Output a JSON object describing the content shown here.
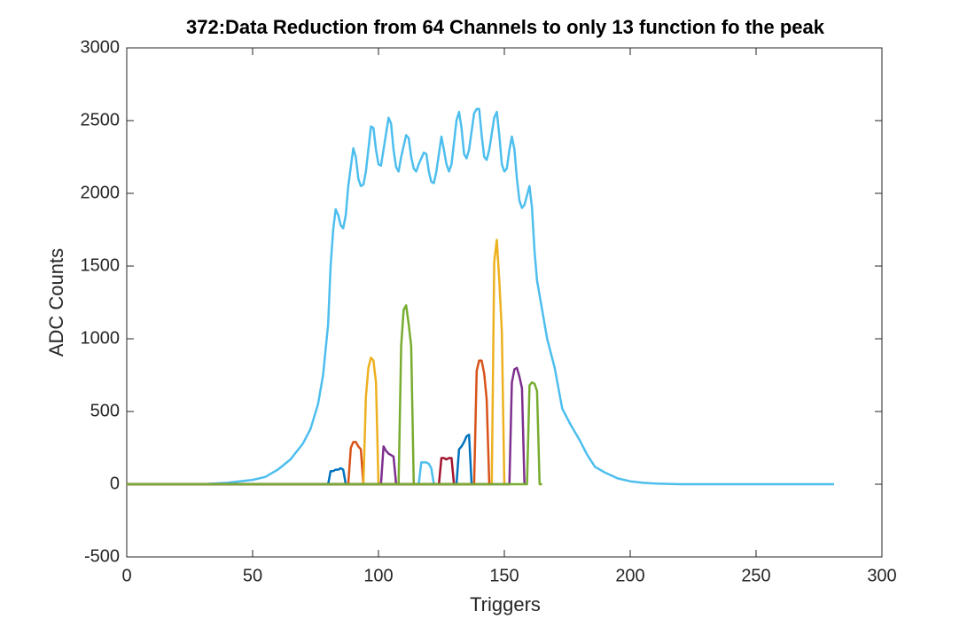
{
  "chart_data": {
    "type": "line",
    "title": "372:Data Reduction from 64 Channels to only 13 function fo the peak",
    "x_label": "Triggers",
    "y_label": "ADC Counts",
    "xlim": [
      0,
      300
    ],
    "xticks": [
      0,
      50,
      100,
      150,
      200,
      250,
      300
    ],
    "ylim": [
      -500,
      3000
    ],
    "yticks": [
      -500,
      0,
      500,
      1000,
      1500,
      2000,
      2500,
      3000
    ],
    "grid": false,
    "series": [
      {
        "color": "#4DBEEE",
        "x": [
          0,
          10,
          20,
          30,
          40,
          50,
          55,
          60,
          65,
          70,
          73,
          76,
          78,
          80,
          81,
          82,
          83,
          84,
          85,
          86,
          87,
          88,
          90,
          91,
          92,
          93,
          94,
          95,
          97,
          98,
          99,
          100,
          101,
          102,
          104,
          105,
          106,
          107,
          108,
          109,
          111,
          112,
          113,
          114,
          115,
          116,
          118,
          119,
          120,
          121,
          122,
          123,
          125,
          126,
          127,
          128,
          129,
          131,
          132,
          133,
          134,
          135,
          136,
          138,
          139,
          140,
          141,
          142,
          143,
          144,
          146,
          147,
          148,
          149,
          150,
          151,
          152,
          153,
          154,
          155,
          156,
          157,
          158,
          160,
          161,
          162,
          163,
          165,
          167,
          170,
          173,
          176,
          180,
          183,
          186,
          190,
          195,
          200,
          205,
          210,
          220,
          281
        ],
        "values": [
          0,
          0,
          0,
          0,
          10,
          30,
          50,
          100,
          170,
          280,
          380,
          550,
          750,
          1100,
          1500,
          1750,
          1890,
          1850,
          1780,
          1760,
          1850,
          2050,
          2310,
          2250,
          2100,
          2050,
          2060,
          2150,
          2460,
          2450,
          2300,
          2200,
          2190,
          2300,
          2520,
          2480,
          2300,
          2180,
          2150,
          2250,
          2400,
          2380,
          2250,
          2170,
          2150,
          2200,
          2280,
          2270,
          2150,
          2080,
          2070,
          2150,
          2390,
          2300,
          2200,
          2150,
          2200,
          2500,
          2560,
          2450,
          2270,
          2240,
          2300,
          2550,
          2580,
          2580,
          2400,
          2250,
          2230,
          2300,
          2520,
          2560,
          2400,
          2200,
          2150,
          2170,
          2300,
          2390,
          2300,
          2100,
          1950,
          1900,
          1920,
          2050,
          1900,
          1600,
          1400,
          1200,
          1000,
          800,
          520,
          420,
          300,
          200,
          120,
          80,
          40,
          20,
          10,
          5,
          0,
          0
        ]
      },
      {
        "color": "#0072BD",
        "x": [
          0,
          80,
          81,
          82,
          83,
          84,
          85,
          86,
          87
        ],
        "values": [
          0,
          0,
          90,
          90,
          100,
          100,
          110,
          100,
          0
        ]
      },
      {
        "color": "#D95319",
        "x": [
          0,
          88,
          89,
          90,
          91,
          92,
          93,
          94
        ],
        "values": [
          0,
          0,
          250,
          290,
          290,
          260,
          240,
          0
        ]
      },
      {
        "color": "#EDB120",
        "x": [
          0,
          94,
          95,
          96,
          97,
          98,
          99,
          100
        ],
        "values": [
          0,
          0,
          600,
          800,
          870,
          850,
          700,
          0
        ]
      },
      {
        "color": "#7E2F8E",
        "x": [
          0,
          101,
          102,
          103,
          104,
          105,
          106,
          107
        ],
        "values": [
          0,
          0,
          260,
          230,
          210,
          200,
          190,
          0
        ]
      },
      {
        "color": "#77AC30",
        "x": [
          0,
          108,
          109,
          110,
          111,
          112,
          113,
          114
        ],
        "values": [
          0,
          0,
          950,
          1200,
          1230,
          1100,
          950,
          0
        ]
      },
      {
        "color": "#4DBEEE",
        "x": [
          0,
          116,
          117,
          118,
          119,
          120,
          121,
          122
        ],
        "values": [
          0,
          0,
          150,
          150,
          150,
          140,
          110,
          0
        ]
      },
      {
        "color": "#A2142F",
        "x": [
          0,
          124,
          125,
          126,
          127,
          128,
          129,
          130
        ],
        "values": [
          0,
          0,
          180,
          180,
          170,
          180,
          180,
          0
        ]
      },
      {
        "color": "#0072BD",
        "x": [
          0,
          131,
          132,
          133,
          134,
          135,
          136,
          137
        ],
        "values": [
          0,
          0,
          240,
          260,
          290,
          330,
          340,
          0
        ]
      },
      {
        "color": "#D95319",
        "x": [
          0,
          138,
          139,
          140,
          141,
          142,
          143,
          144
        ],
        "values": [
          0,
          0,
          780,
          850,
          850,
          760,
          580,
          0
        ]
      },
      {
        "color": "#EDB120",
        "x": [
          0,
          145,
          146,
          147,
          148,
          149,
          150,
          151
        ],
        "values": [
          0,
          0,
          1530,
          1680,
          1400,
          1050,
          0,
          0
        ]
      },
      {
        "color": "#7E2F8E",
        "x": [
          0,
          152,
          153,
          154,
          155,
          156,
          157,
          158
        ],
        "values": [
          0,
          0,
          700,
          790,
          800,
          740,
          660,
          0
        ]
      },
      {
        "color": "#77AC30",
        "x": [
          0,
          159,
          160,
          161,
          162,
          163,
          164,
          165
        ],
        "values": [
          0,
          0,
          680,
          700,
          690,
          640,
          0,
          0
        ]
      }
    ]
  }
}
